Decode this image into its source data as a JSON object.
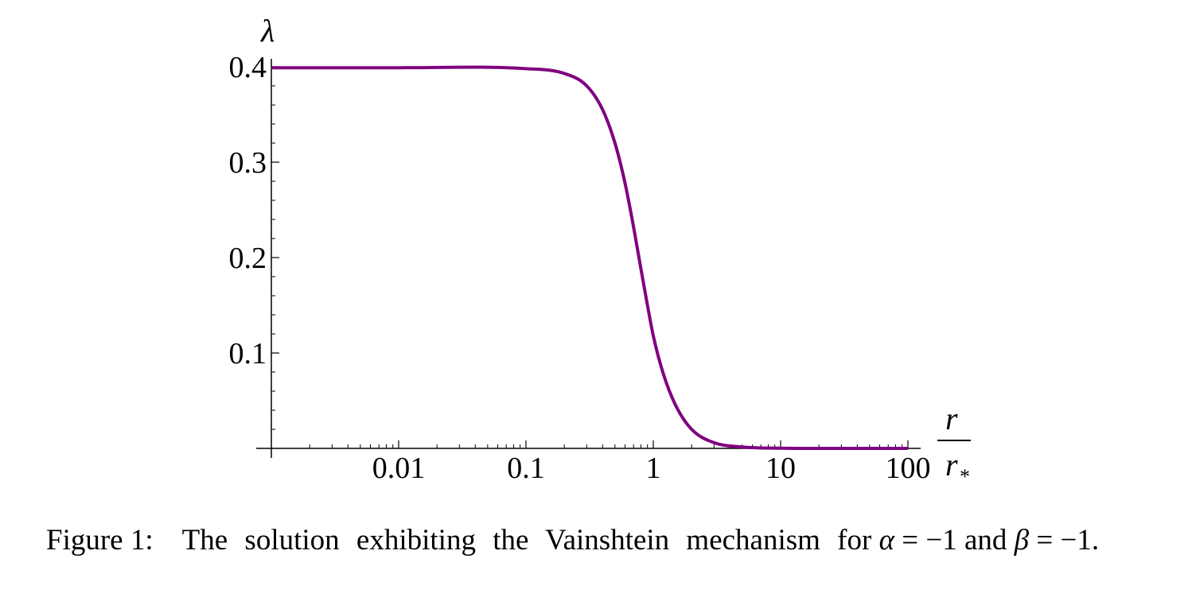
{
  "chart_data": {
    "type": "line",
    "x_scale": "log",
    "xlabel_num": "r",
    "xlabel_den": "r",
    "xlabel_den_sub": "*",
    "ylabel": "λ",
    "xlim": [
      0.001,
      100
    ],
    "ylim": [
      0,
      0.4
    ],
    "xticks": [
      {
        "value": 0.01,
        "label": "0.01"
      },
      {
        "value": 0.1,
        "label": "0.1"
      },
      {
        "value": 1,
        "label": "1"
      },
      {
        "value": 10,
        "label": "10"
      },
      {
        "value": 100,
        "label": "100"
      }
    ],
    "yticks": [
      {
        "value": 0.1,
        "label": "0.1"
      },
      {
        "value": 0.2,
        "label": "0.2"
      },
      {
        "value": 0.3,
        "label": "0.3"
      },
      {
        "value": 0.4,
        "label": "0.4"
      }
    ],
    "series": [
      {
        "color": "#800080",
        "x": [
          0.001,
          0.01,
          0.1,
          0.2,
          0.3,
          0.4,
          0.5,
          0.6,
          0.7,
          0.8,
          0.9,
          1.0,
          1.2,
          1.5,
          2.0,
          3.0,
          5.0,
          10,
          30,
          100
        ],
        "y": [
          0.399,
          0.399,
          0.398,
          0.393,
          0.38,
          0.355,
          0.32,
          0.278,
          0.232,
          0.188,
          0.15,
          0.118,
          0.078,
          0.045,
          0.02,
          0.006,
          0.0015,
          0.0002,
          0.0,
          0.0
        ]
      }
    ]
  },
  "caption": {
    "label": "Figure 1:",
    "text_before_alpha": "The solution exhibiting the Vainshtein mechanism for",
    "alpha": "α",
    "eq1": "= −1",
    "and": "and",
    "beta": "β",
    "eq2": "= −1."
  }
}
